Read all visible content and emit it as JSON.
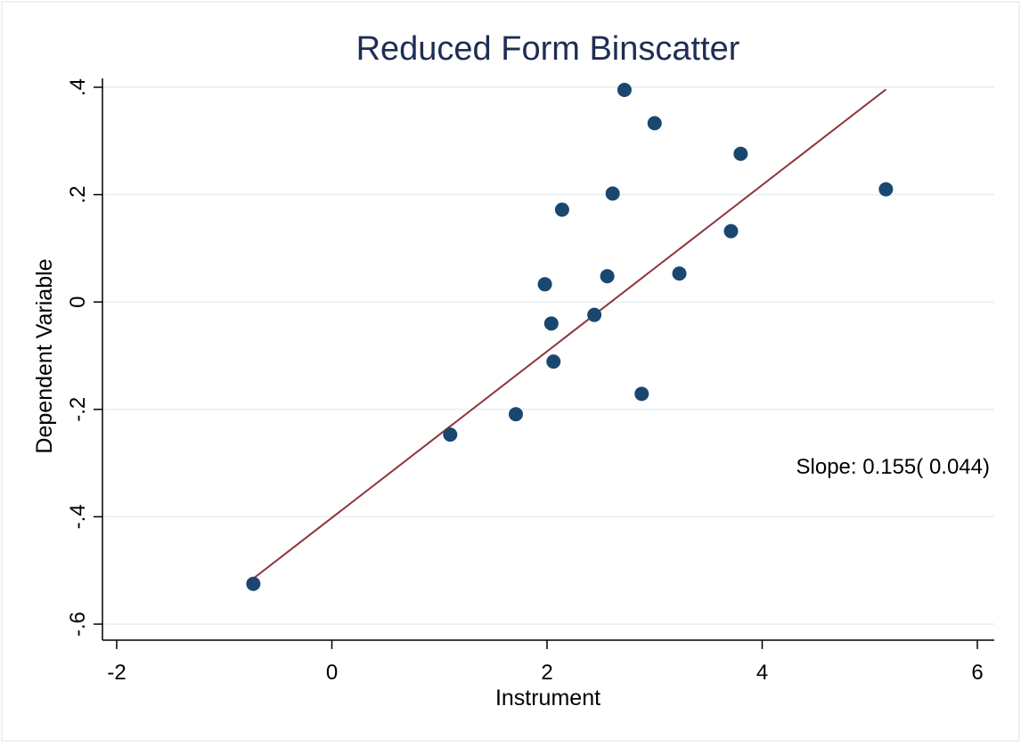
{
  "chart_data": {
    "type": "scatter",
    "title": "Reduced Form Binscatter",
    "xlabel": "Instrument",
    "ylabel": "Dependent Variable",
    "xlim": [
      -2,
      6
    ],
    "ylim": [
      -0.6,
      0.4
    ],
    "x_ticks": [
      -2,
      0,
      2,
      4,
      6
    ],
    "x_tick_labels": [
      "-2",
      "0",
      "2",
      "4",
      "6"
    ],
    "y_ticks": [
      -0.6,
      -0.4,
      -0.2,
      0,
      0.2,
      0.4
    ],
    "y_tick_labels": [
      "-.6",
      "-.4",
      "-.2",
      "0",
      ".2",
      ".4"
    ],
    "grid": true,
    "points": [
      {
        "x": -0.73,
        "y": -0.525
      },
      {
        "x": 1.1,
        "y": -0.247
      },
      {
        "x": 1.71,
        "y": -0.209
      },
      {
        "x": 1.98,
        "y": 0.033
      },
      {
        "x": 2.04,
        "y": -0.04
      },
      {
        "x": 2.06,
        "y": -0.111
      },
      {
        "x": 2.14,
        "y": 0.172
      },
      {
        "x": 2.44,
        "y": -0.024
      },
      {
        "x": 2.56,
        "y": 0.048
      },
      {
        "x": 2.61,
        "y": 0.202
      },
      {
        "x": 2.72,
        "y": 0.395
      },
      {
        "x": 2.88,
        "y": -0.171
      },
      {
        "x": 3.0,
        "y": 0.333
      },
      {
        "x": 3.23,
        "y": 0.053
      },
      {
        "x": 3.71,
        "y": 0.132
      },
      {
        "x": 3.8,
        "y": 0.276
      },
      {
        "x": 5.15,
        "y": 0.21
      }
    ],
    "fit_line": {
      "x": [
        -0.73,
        5.15
      ],
      "y": [
        -0.515,
        0.396
      ]
    },
    "annotation": "Slope:  0.155( 0.044)",
    "colors": {
      "points": "#1a476f",
      "fit_line": "#90353b",
      "grid": "#eaf2f3",
      "title": "#1e2d53",
      "axis": "#000000"
    }
  }
}
